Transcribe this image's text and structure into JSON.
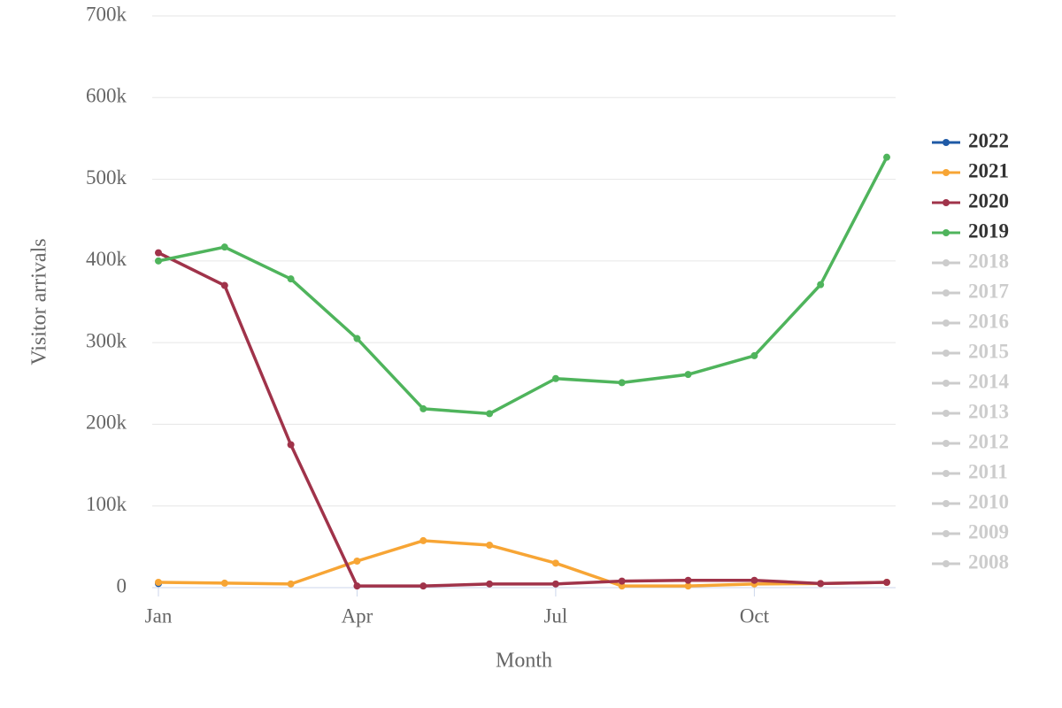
{
  "chart_data": {
    "type": "line",
    "x_label": "Month",
    "y_label": "Visitor arrivals",
    "categories": [
      "Jan",
      null,
      null,
      "Apr",
      null,
      null,
      "Jul",
      null,
      null,
      "Oct",
      null,
      null
    ],
    "ylim": [
      0,
      700000
    ],
    "yticks": [
      0,
      {
        "value": 100000,
        "label": "100k"
      },
      {
        "value": 200000,
        "label": "200k"
      },
      {
        "value": 300000,
        "label": "300k"
      },
      {
        "value": 400000,
        "label": "400k"
      },
      {
        "value": 500000,
        "label": "500k"
      },
      {
        "value": 600000,
        "label": "600k"
      },
      {
        "value": 700000,
        "label": "700k"
      }
    ],
    "grid": true,
    "legend": "right",
    "series": [
      {
        "name": "2022",
        "color": "#1f5aa6",
        "values": [
          5000,
          null,
          null,
          null,
          null,
          null,
          null,
          null,
          null,
          null,
          null,
          null
        ]
      },
      {
        "name": "2021",
        "color": "#f7a535",
        "values": [
          6500,
          5500,
          4500,
          32500,
          57500,
          52000,
          30000,
          2000,
          2000,
          4500,
          5000,
          6500
        ]
      },
      {
        "name": "2020",
        "color": "#a0334a",
        "values": [
          410000,
          370000,
          175000,
          2000,
          2000,
          4500,
          4500,
          8000,
          9000,
          9000,
          5000,
          6500
        ]
      },
      {
        "name": "2019",
        "color": "#4fb45c",
        "values": [
          400000,
          417000,
          378000,
          305000,
          219000,
          213000,
          256000,
          251000,
          261000,
          284000,
          371000,
          527000
        ]
      },
      {
        "name": "2018",
        "visible": false
      },
      {
        "name": "2017",
        "visible": false
      },
      {
        "name": "2016",
        "visible": false
      },
      {
        "name": "2015",
        "visible": false
      },
      {
        "name": "2014",
        "visible": false
      },
      {
        "name": "2013",
        "visible": false
      },
      {
        "name": "2012",
        "visible": false
      },
      {
        "name": "2011",
        "visible": false
      },
      {
        "name": "2010",
        "visible": false
      },
      {
        "name": "2009",
        "visible": false
      },
      {
        "name": "2008",
        "visible": false
      }
    ]
  }
}
